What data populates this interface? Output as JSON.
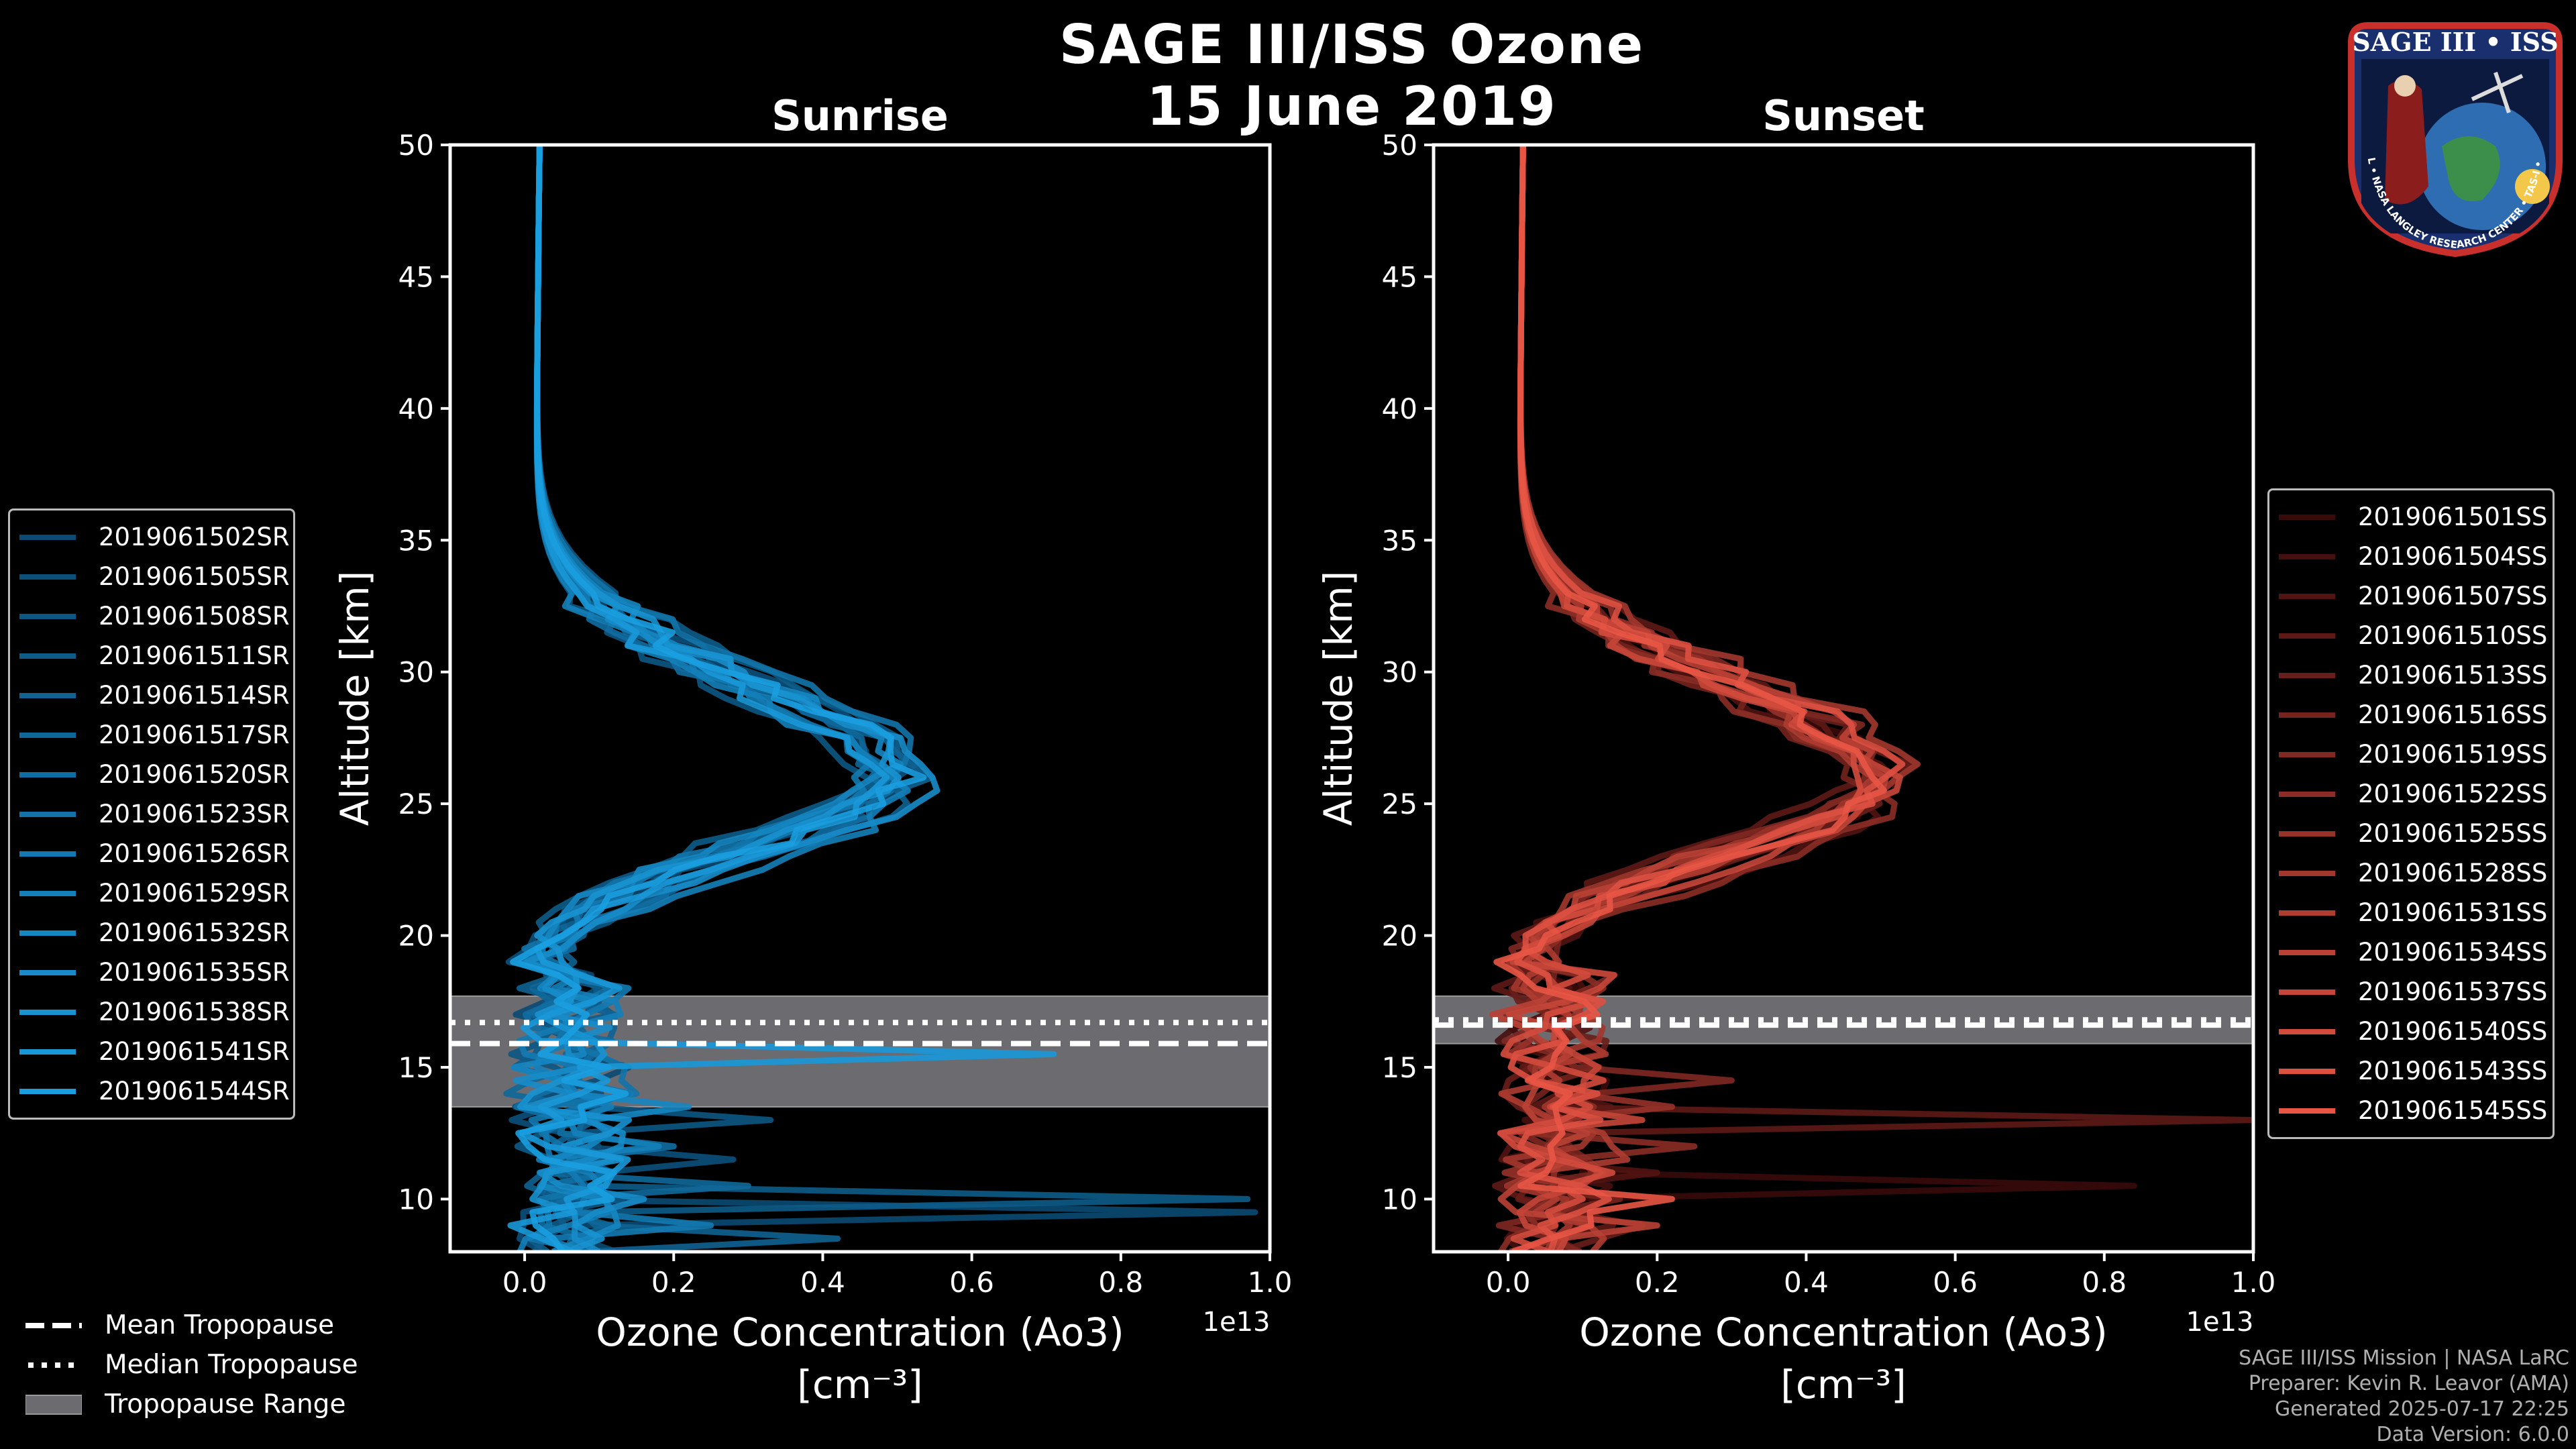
{
  "figure": {
    "title_line1": "SAGE III/ISS Ozone",
    "title_line2": "15 June 2019"
  },
  "chart_data": [
    {
      "type": "line",
      "panel": "left",
      "title": "Sunrise",
      "xlabel_line1": "Ozone Concentration (Ao3)",
      "xlabel_line2": "[cm⁻³]",
      "ylabel": "Altitude [km]",
      "x_offset_label": "1e13",
      "xlim": [
        -0.1,
        1.0
      ],
      "ylim": [
        8,
        50
      ],
      "xticks": [
        0.0,
        0.2,
        0.4,
        0.6,
        0.8,
        1.0
      ],
      "xtick_labels": [
        "0.0",
        "0.2",
        "0.4",
        "0.6",
        "0.8",
        "1.0"
      ],
      "yticks": [
        10,
        15,
        20,
        25,
        30,
        35,
        40,
        45,
        50
      ],
      "ytick_labels": [
        "10",
        "15",
        "20",
        "25",
        "30",
        "35",
        "40",
        "45",
        "50"
      ],
      "tropopause": {
        "mean": 15.9,
        "median": 16.7,
        "range": [
          13.5,
          17.7
        ]
      },
      "color_dark": "#0a4a73",
      "color_light": "#1a9ee0",
      "series": [
        {
          "name": "2019061502SR",
          "peak": 0.47,
          "peak_alt": 25.8,
          "seed": 1,
          "spike": [
            9.4,
            0.98
          ]
        },
        {
          "name": "2019061505SR",
          "peak": 0.5,
          "peak_alt": 26.2,
          "seed": 2,
          "spike": [
            11.3,
            0.28
          ]
        },
        {
          "name": "2019061508SR",
          "peak": 0.45,
          "peak_alt": 25.2,
          "seed": 3,
          "spike": [
            13.1,
            0.33
          ]
        },
        {
          "name": "2019061511SR",
          "peak": 0.49,
          "peak_alt": 26.6,
          "seed": 4,
          "spike": [
            9.8,
            0.97
          ]
        },
        {
          "name": "2019061514SR",
          "peak": 0.52,
          "peak_alt": 25.6,
          "seed": 5,
          "spike": [
            8.5,
            0.42
          ]
        },
        {
          "name": "2019061517SR",
          "peak": 0.46,
          "peak_alt": 26.0,
          "seed": 6,
          "spike": [
            10.6,
            0.3
          ]
        },
        {
          "name": "2019061520SR",
          "peak": 0.48,
          "peak_alt": 25.4,
          "seed": 7,
          "spike": [
            12.2,
            0.2
          ]
        },
        {
          "name": "2019061523SR",
          "peak": 0.51,
          "peak_alt": 26.4,
          "seed": 8,
          "spike": [
            14.0,
            0.15
          ]
        },
        {
          "name": "2019061526SR",
          "peak": 0.44,
          "peak_alt": 25.9,
          "seed": 9,
          "spike": [
            9.0,
            0.25
          ]
        },
        {
          "name": "2019061529SR",
          "peak": 0.5,
          "peak_alt": 25.1,
          "seed": 10,
          "spike": [
            11.8,
            0.18
          ]
        },
        {
          "name": "2019061532SR",
          "peak": 0.47,
          "peak_alt": 26.3,
          "seed": 11,
          "spike": [
            13.6,
            0.22
          ]
        },
        {
          "name": "2019061535SR",
          "peak": 0.53,
          "peak_alt": 25.7,
          "seed": 12,
          "spike": [
            10.2,
            0.16
          ]
        },
        {
          "name": "2019061538SR",
          "peak": 0.49,
          "peak_alt": 26.1,
          "seed": 13,
          "spike": [
            12.8,
            0.14
          ]
        },
        {
          "name": "2019061541SR",
          "peak": 0.46,
          "peak_alt": 25.5,
          "seed": 14,
          "spike": [
            15.5,
            0.71
          ]
        },
        {
          "name": "2019061544SR",
          "peak": 0.5,
          "peak_alt": 25.9,
          "seed": 15,
          "spike": [
            11.0,
            0.12
          ]
        }
      ]
    },
    {
      "type": "line",
      "panel": "right",
      "title": "Sunset",
      "xlabel_line1": "Ozone Concentration (Ao3)",
      "xlabel_line2": "[cm⁻³]",
      "ylabel": "Altitude [km]",
      "x_offset_label": "1e13",
      "xlim": [
        -0.1,
        1.0
      ],
      "ylim": [
        8,
        50
      ],
      "xticks": [
        0.0,
        0.2,
        0.4,
        0.6,
        0.8,
        1.0
      ],
      "xtick_labels": [
        "0.0",
        "0.2",
        "0.4",
        "0.6",
        "0.8",
        "1.0"
      ],
      "yticks": [
        10,
        15,
        20,
        25,
        30,
        35,
        40,
        45,
        50
      ],
      "ytick_labels": [
        "10",
        "15",
        "20",
        "25",
        "30",
        "35",
        "40",
        "45",
        "50"
      ],
      "tropopause": {
        "mean": 16.6,
        "median": 16.8,
        "range": [
          15.9,
          17.7
        ]
      },
      "color_dark": "#3a0a0a",
      "color_light": "#e85545",
      "series": [
        {
          "name": "2019061501SS",
          "peak": 0.49,
          "peak_alt": 25.6,
          "seed": 21,
          "spike": [
            10.5,
            0.84
          ]
        },
        {
          "name": "2019061504SS",
          "peak": 0.48,
          "peak_alt": 26.0,
          "seed": 22,
          "spike": [
            9.6,
            0.12
          ]
        },
        {
          "name": "2019061507SS",
          "peak": 0.5,
          "peak_alt": 25.2,
          "seed": 23,
          "spike": [
            11.2,
            0.2
          ]
        },
        {
          "name": "2019061510SS",
          "peak": 0.47,
          "peak_alt": 26.4,
          "seed": 24,
          "spike": [
            12.9,
            1.0
          ]
        },
        {
          "name": "2019061513SS",
          "peak": 0.51,
          "peak_alt": 25.8,
          "seed": 25,
          "spike": [
            8.8,
            0.18
          ]
        },
        {
          "name": "2019061516SS",
          "peak": 0.46,
          "peak_alt": 25.4,
          "seed": 26,
          "spike": [
            10.0,
            0.15
          ]
        },
        {
          "name": "2019061519SS",
          "peak": 0.49,
          "peak_alt": 26.2,
          "seed": 27,
          "spike": [
            14.6,
            0.3
          ]
        },
        {
          "name": "2019061522SS",
          "peak": 0.5,
          "peak_alt": 25.0,
          "seed": 28,
          "spike": [
            12.0,
            0.25
          ]
        },
        {
          "name": "2019061525SS",
          "peak": 0.48,
          "peak_alt": 25.9,
          "seed": 29,
          "spike": [
            13.5,
            0.22
          ]
        },
        {
          "name": "2019061528SS",
          "peak": 0.52,
          "peak_alt": 26.3,
          "seed": 30,
          "spike": [
            16.0,
            0.48
          ]
        },
        {
          "name": "2019061531SS",
          "peak": 0.47,
          "peak_alt": 25.5,
          "seed": 31,
          "spike": [
            11.6,
            0.16
          ]
        },
        {
          "name": "2019061534SS",
          "peak": 0.49,
          "peak_alt": 26.1,
          "seed": 32,
          "spike": [
            9.2,
            0.2
          ]
        },
        {
          "name": "2019061537SS",
          "peak": 0.5,
          "peak_alt": 25.3,
          "seed": 33,
          "spike": [
            13.0,
            0.18
          ]
        },
        {
          "name": "2019061540SS",
          "peak": 0.48,
          "peak_alt": 25.7,
          "seed": 34,
          "spike": [
            10.8,
            0.14
          ]
        },
        {
          "name": "2019061543SS",
          "peak": 0.51,
          "peak_alt": 26.0,
          "seed": 35,
          "spike": [
            14.2,
            0.12
          ]
        },
        {
          "name": "2019061545SS",
          "peak": 0.49,
          "peak_alt": 25.6,
          "seed": 36,
          "spike": [
            10.1,
            0.22
          ]
        }
      ]
    }
  ],
  "tropopause_legend": {
    "mean_label": "Mean Tropopause",
    "median_label": "Median Tropopause",
    "range_label": "Tropopause Range"
  },
  "footer": {
    "line1": "SAGE III/ISS Mission | NASA LaRC",
    "line2": "Preparer: Kevin R. Leavor (AMA)",
    "line3": "Generated 2025-07-17 22:25",
    "line4": "Data Version: 6.0.0"
  },
  "logo": {
    "title": "SAGE III • ISS",
    "ring_text": "BALL • NASA LANGLEY RESEARCH CENTER • TAS-I • ESA"
  },
  "colors": {
    "background": "#000000",
    "tropopause_fill": "#6b6b70",
    "axis": "#ffffff"
  }
}
